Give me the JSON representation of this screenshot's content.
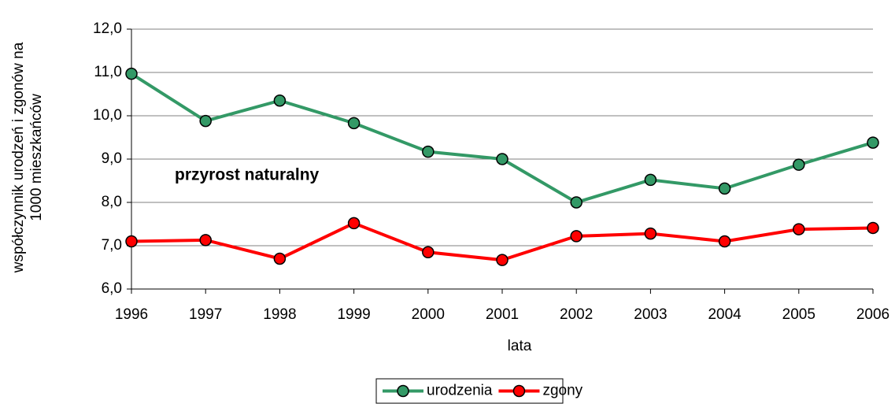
{
  "chart_data": {
    "type": "line",
    "ylabel": [
      "współczynnik urodzeń i zgonów na",
      "1000 mieszkańców"
    ],
    "xlabel": "lata",
    "annotation": "przyrost naturalny",
    "categories": [
      "1996",
      "1997",
      "1998",
      "1999",
      "2000",
      "2001",
      "2002",
      "2003",
      "2004",
      "2005",
      "2006"
    ],
    "series": [
      {
        "name": "urodzenia",
        "color": "#339966",
        "values": [
          10.97,
          9.88,
          10.35,
          9.83,
          9.17,
          9.0,
          8.0,
          8.52,
          8.32,
          8.87,
          9.38
        ]
      },
      {
        "name": "zgony",
        "color": "#ff0000",
        "values": [
          7.1,
          7.13,
          6.7,
          7.52,
          6.85,
          6.67,
          7.22,
          7.28,
          7.1,
          7.38,
          7.41
        ]
      }
    ],
    "ylim": [
      6,
      12
    ],
    "yticks": [
      {
        "value": 6,
        "label": "6,0"
      },
      {
        "value": 7,
        "label": "7,0"
      },
      {
        "value": 8,
        "label": "8,0"
      },
      {
        "value": 9,
        "label": "9,0"
      },
      {
        "value": 10,
        "label": "10,0"
      },
      {
        "value": 11,
        "label": "11,0"
      },
      {
        "value": 12,
        "label": "12,0"
      }
    ],
    "grid": true,
    "legend": "bottom"
  }
}
